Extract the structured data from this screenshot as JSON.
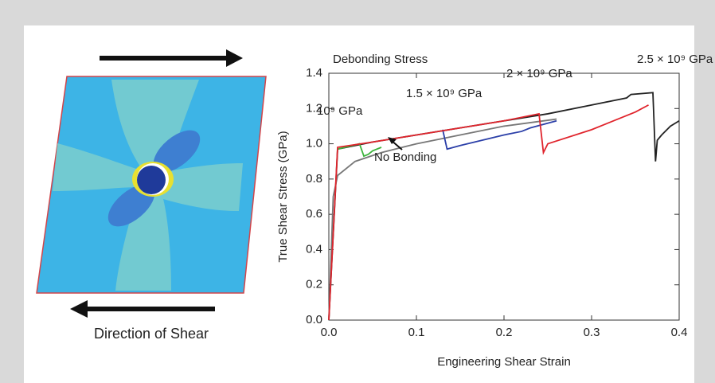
{
  "diagram": {
    "label": "Direction of Shear"
  },
  "chart_data": {
    "type": "line",
    "annotation": "Debonding Stress",
    "xlabel": "Engineering Shear Strain",
    "ylabel": "True Shear Stress (GPa)",
    "xlim": [
      0,
      0.4
    ],
    "ylim": [
      0,
      1.4
    ],
    "xticks": [
      {
        "value": 0,
        "label": "0.0"
      },
      0.1,
      0.2,
      0.3,
      0.4
    ],
    "yticks": [
      {
        "value": 0,
        "label": "0.0"
      },
      0.2,
      0.4,
      0.6,
      0.8,
      {
        "value": 1,
        "label": "1.0"
      },
      1.2,
      1.4
    ],
    "grid": false,
    "series": [
      {
        "name": "2.5 × 10⁹ GPa",
        "color": "#222222",
        "x": [
          0,
          0.01,
          0.05,
          0.1,
          0.15,
          0.2,
          0.25,
          0.3,
          0.34,
          0.345,
          0.37,
          0.373,
          0.375,
          0.38,
          0.39,
          0.4
        ],
        "values": [
          0,
          0.97,
          1.01,
          1.05,
          1.09,
          1.13,
          1.17,
          1.22,
          1.26,
          1.28,
          1.29,
          0.9,
          1.02,
          1.05,
          1.1,
          1.13
        ]
      },
      {
        "name": "No Bonding",
        "color": "#777777",
        "x": [
          0,
          0.005,
          0.01,
          0.03,
          0.06,
          0.1,
          0.15,
          0.2,
          0.26
        ],
        "values": [
          0,
          0.7,
          0.82,
          0.9,
          0.95,
          1.0,
          1.05,
          1.1,
          1.14
        ]
      },
      {
        "name": "10⁹ GPa",
        "color": "#3db33d",
        "x": [
          0.01,
          0.035,
          0.04,
          0.045,
          0.05,
          0.06
        ],
        "values": [
          0.97,
          1.0,
          0.93,
          0.94,
          0.96,
          0.98
        ]
      },
      {
        "name": "1.5 × 10⁹ GPa",
        "color": "#2b3fa8",
        "x": [
          0.13,
          0.135,
          0.15,
          0.2,
          0.22,
          0.23,
          0.26
        ],
        "values": [
          1.08,
          0.97,
          0.99,
          1.05,
          1.07,
          1.09,
          1.13
        ]
      },
      {
        "name": "2 × 10⁹ GPa",
        "color": "#e0242c",
        "x": [
          0,
          0.01,
          0.05,
          0.1,
          0.15,
          0.2,
          0.24,
          0.245,
          0.25,
          0.3,
          0.35,
          0.365
        ],
        "values": [
          0,
          0.98,
          1.01,
          1.05,
          1.09,
          1.13,
          1.17,
          0.95,
          1.0,
          1.08,
          1.18,
          1.22
        ]
      }
    ]
  }
}
